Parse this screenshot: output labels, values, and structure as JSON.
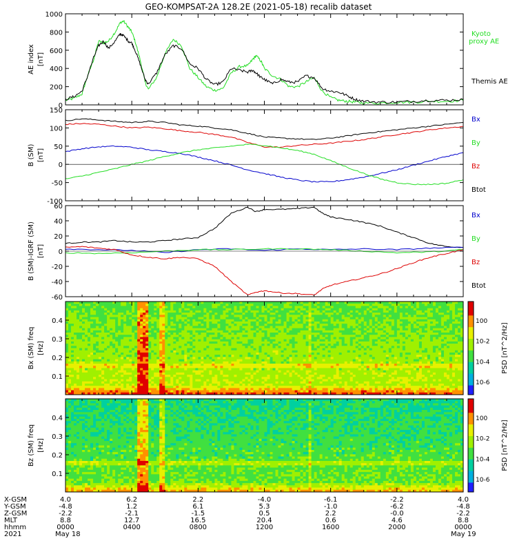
{
  "title": "GEO-KOMPSAT-2A 128.2E (2021-05-18) recalib dataset",
  "colors": {
    "black": "#000000",
    "blue": "#0000cc",
    "green": "#22dd22",
    "red": "#dd0000"
  },
  "chart_data": [
    {
      "type": "line",
      "id": "ae",
      "ylabel": "AE index [nT]",
      "ylim": [
        0,
        1000
      ],
      "yticks": [
        0,
        200,
        400,
        600,
        800,
        1000
      ],
      "xlim": [
        0,
        24
      ],
      "legend": [
        "Kyoto proxy AE",
        "Themis AE"
      ],
      "series": [
        {
          "name": "Kyoto proxy AE",
          "color": "green",
          "x": [
            0,
            0.5,
            1.0,
            1.3,
            1.7,
            2.0,
            2.3,
            2.6,
            3.0,
            3.3,
            3.5,
            3.8,
            4.0,
            4.2,
            4.5,
            4.8,
            5.0,
            5.5,
            6.0,
            6.5,
            7.0,
            7.5,
            8.0,
            8.5,
            9.0,
            9.5,
            10.0,
            10.5,
            11.0,
            11.3,
            11.5,
            11.8,
            12.0,
            12.5,
            13.0,
            13.5,
            14.0,
            14.5,
            15.0,
            15.5,
            16.0,
            16.5,
            17.0,
            17.5,
            18.0,
            19.0,
            20.0,
            21.0,
            22.0,
            23.0,
            24.0
          ],
          "y": [
            50,
            70,
            120,
            300,
            500,
            700,
            680,
            700,
            800,
            900,
            920,
            850,
            800,
            700,
            500,
            250,
            170,
            300,
            560,
            720,
            650,
            400,
            300,
            200,
            160,
            180,
            350,
            420,
            430,
            500,
            540,
            480,
            400,
            320,
            280,
            200,
            200,
            250,
            300,
            150,
            80,
            50,
            40,
            30,
            20,
            20,
            30,
            30,
            40,
            40,
            50
          ]
        },
        {
          "name": "Themis AE",
          "color": "black",
          "x": [
            0,
            0.5,
            1.0,
            1.3,
            1.7,
            2.0,
            2.3,
            2.6,
            3.0,
            3.3,
            3.5,
            3.8,
            4.0,
            4.2,
            4.5,
            4.8,
            5.0,
            5.5,
            6.0,
            6.5,
            7.0,
            7.5,
            8.0,
            8.5,
            9.0,
            9.5,
            10.0,
            10.5,
            11.0,
            11.3,
            11.5,
            11.8,
            12.0,
            12.5,
            13.0,
            13.5,
            14.0,
            14.5,
            15.0,
            15.5,
            16.0,
            16.5,
            17.0,
            17.5,
            18.0,
            19.0,
            20.0,
            21.0,
            22.0,
            23.0,
            24.0
          ],
          "y": [
            60,
            90,
            150,
            300,
            520,
            650,
            700,
            620,
            700,
            780,
            760,
            700,
            680,
            600,
            450,
            280,
            230,
            350,
            550,
            650,
            620,
            450,
            400,
            280,
            220,
            250,
            400,
            380,
            360,
            380,
            350,
            300,
            280,
            230,
            280,
            250,
            250,
            320,
            300,
            180,
            150,
            140,
            100,
            60,
            40,
            30,
            30,
            40,
            50,
            50,
            60
          ]
        }
      ]
    },
    {
      "type": "line",
      "id": "bsm",
      "ylabel": "B (SM) [nT]",
      "ylim": [
        -100,
        150
      ],
      "yticks": [
        -100,
        -50,
        0,
        50,
        100,
        150
      ],
      "xlim": [
        0,
        24
      ],
      "legend": [
        "Bx",
        "By",
        "Bz",
        "Btot"
      ],
      "series": [
        {
          "name": "Btot",
          "color": "black",
          "x": [
            0,
            1,
            2,
            3,
            4,
            5,
            6,
            7,
            8,
            9,
            10,
            11,
            12,
            13,
            14,
            15,
            16,
            17,
            18,
            19,
            20,
            21,
            22,
            23,
            24
          ],
          "y": [
            120,
            125,
            122,
            118,
            115,
            118,
            115,
            108,
            105,
            100,
            95,
            85,
            75,
            72,
            70,
            68,
            72,
            78,
            85,
            90,
            95,
            100,
            105,
            110,
            115
          ]
        },
        {
          "name": "Bz",
          "color": "red",
          "x": [
            0,
            1,
            2,
            3,
            4,
            5,
            6,
            7,
            8,
            9,
            10,
            11,
            12,
            13,
            14,
            15,
            16,
            17,
            18,
            19,
            20,
            21,
            22,
            23,
            24
          ],
          "y": [
            110,
            112,
            110,
            105,
            100,
            102,
            98,
            92,
            88,
            82,
            75,
            60,
            48,
            47,
            52,
            55,
            58,
            63,
            68,
            75,
            82,
            88,
            95,
            100,
            104
          ]
        },
        {
          "name": "Bx",
          "color": "blue",
          "x": [
            0,
            1,
            2,
            3,
            4,
            5,
            6,
            7,
            8,
            9,
            10,
            11,
            12,
            13,
            14,
            15,
            16,
            17,
            18,
            19,
            20,
            21,
            22,
            23,
            24
          ],
          "y": [
            35,
            43,
            48,
            50,
            47,
            40,
            35,
            30,
            20,
            10,
            -2,
            -15,
            -25,
            -35,
            -43,
            -48,
            -48,
            -42,
            -35,
            -25,
            -15,
            -2,
            10,
            22,
            32
          ]
        },
        {
          "name": "By",
          "color": "green",
          "x": [
            0,
            1,
            2,
            3,
            4,
            5,
            6,
            7,
            8,
            9,
            10,
            11,
            12,
            13,
            14,
            15,
            16,
            17,
            18,
            19,
            20,
            21,
            22,
            23,
            24
          ],
          "y": [
            -40,
            -32,
            -22,
            -12,
            0,
            10,
            22,
            32,
            40,
            45,
            50,
            55,
            52,
            45,
            38,
            28,
            10,
            -8,
            -25,
            -40,
            -50,
            -55,
            -55,
            -52,
            -42
          ]
        }
      ]
    },
    {
      "type": "line",
      "id": "bigrf",
      "ylabel": "B (SM)-IGRF (SM) [nT]",
      "ylim": [
        -60,
        60
      ],
      "yticks": [
        -60,
        -40,
        -20,
        0,
        20,
        40,
        60
      ],
      "xlim": [
        0,
        24
      ],
      "legend": [
        "Bx",
        "By",
        "Bz",
        "Btot"
      ],
      "series": [
        {
          "name": "Btot",
          "color": "black",
          "x": [
            0,
            1,
            2,
            3,
            4,
            5,
            6,
            7,
            8,
            9,
            10,
            11,
            11.5,
            12,
            13,
            14,
            15,
            15.5,
            16,
            17,
            18,
            19,
            20,
            21,
            22,
            23,
            24
          ],
          "y": [
            10,
            12,
            12,
            14,
            12,
            12,
            14,
            16,
            18,
            30,
            50,
            58,
            52,
            55,
            55,
            56,
            58,
            50,
            45,
            42,
            38,
            33,
            25,
            18,
            10,
            6,
            5
          ]
        },
        {
          "name": "Bx",
          "color": "blue",
          "x": [
            0,
            2,
            4,
            6,
            8,
            10,
            12,
            14,
            16,
            18,
            20,
            22,
            24
          ],
          "y": [
            3,
            2,
            1,
            -2,
            2,
            3,
            1,
            3,
            2,
            3,
            2,
            4,
            5
          ]
        },
        {
          "name": "By",
          "color": "green",
          "x": [
            0,
            2,
            4,
            6,
            8,
            10,
            12,
            14,
            16,
            18,
            20,
            22,
            24
          ],
          "y": [
            -2,
            -3,
            -2,
            0,
            2,
            2,
            3,
            3,
            2,
            0,
            -2,
            -1,
            2
          ]
        },
        {
          "name": "Bz",
          "color": "red",
          "x": [
            0,
            1,
            2,
            3,
            4,
            5,
            6,
            7,
            8,
            9,
            10,
            11,
            11.5,
            12,
            13,
            14,
            15,
            15.5,
            16,
            17,
            18,
            19,
            20,
            21,
            22,
            23,
            24
          ],
          "y": [
            5,
            6,
            4,
            2,
            -5,
            -8,
            -10,
            -8,
            -10,
            -20,
            -40,
            -58,
            -54,
            -52,
            -55,
            -56,
            -58,
            -50,
            -45,
            -40,
            -35,
            -30,
            -23,
            -15,
            -8,
            -3,
            2
          ]
        }
      ]
    },
    {
      "type": "heatmap",
      "id": "bx-spec",
      "ylabel": "Bx (SM) freq [Hz]",
      "yticks": [
        0.1,
        0.2,
        0.3,
        0.4
      ],
      "ylim": [
        0,
        0.5
      ],
      "xlim": [
        0,
        24
      ],
      "colorbar_label": "PSD [nT^2/Hz]",
      "colorbar_ticks": [
        "10^0",
        "10^-2",
        "10^-4",
        "10^-6"
      ]
    },
    {
      "type": "heatmap",
      "id": "bz-spec",
      "ylabel": "Bz (SM) freq [Hz]",
      "yticks": [
        0.1,
        0.2,
        0.3,
        0.4
      ],
      "ylim": [
        0,
        0.5
      ],
      "xlim": [
        0,
        24
      ],
      "colorbar_label": "PSD [nT^2/Hz]",
      "colorbar_ticks": [
        "10^0",
        "10^-2",
        "10^-4",
        "10^-6"
      ]
    }
  ],
  "ephemeris": {
    "labels": [
      "X-GSM",
      "Y-GSM",
      "Z-GSM",
      "MLT",
      "hhmm",
      "2021"
    ],
    "columns": [
      [
        "4.0",
        "-4.8",
        "-2.2",
        "8.8",
        "0000",
        "May 18"
      ],
      [
        "6.2",
        "1.2",
        "-2.1",
        "12.7",
        "0400",
        ""
      ],
      [
        "2.2",
        "6.1",
        "-1.5",
        "16.5",
        "0800",
        ""
      ],
      [
        "-4.0",
        "5.3",
        "0.5",
        "20.4",
        "1200",
        ""
      ],
      [
        "-6.1",
        "-1.0",
        "2.2",
        "0.6",
        "1600",
        ""
      ],
      [
        "-2.2",
        "-6.2",
        "-0.0",
        "4.6",
        "2000",
        ""
      ],
      [
        "4.0",
        "-4.8",
        "-2.2",
        "8.8",
        "0000",
        "May 19"
      ]
    ]
  }
}
